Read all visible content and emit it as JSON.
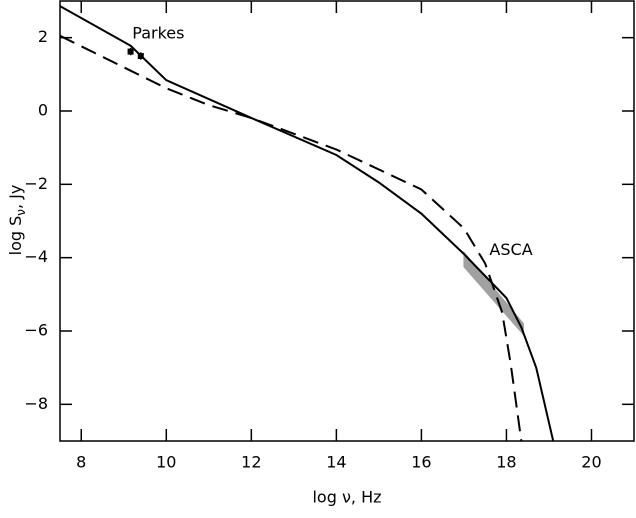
{
  "chart_data": {
    "type": "line",
    "xlabel": "log ν, Hz",
    "ylabel": [
      "log S",
      "ν",
      ", Jy"
    ],
    "xlim": [
      7.5,
      21
    ],
    "ylim": [
      -9,
      3
    ],
    "xticks": [
      8,
      10,
      12,
      14,
      16,
      18,
      20
    ],
    "yticks": [
      {
        "value": -8,
        "label": "−8"
      },
      {
        "value": -6,
        "label": "−6"
      },
      {
        "value": -4,
        "label": "−4"
      },
      {
        "value": -2,
        "label": "−2"
      },
      0,
      2
    ],
    "series": [
      {
        "color": "#000000",
        "dash": false,
        "x": [
          7.5,
          9.16,
          10,
          12,
          14,
          15,
          16,
          17,
          18,
          18.35,
          18.7,
          19.1
        ],
        "values": [
          2.86,
          1.78,
          0.84,
          -0.19,
          -1.2,
          -1.95,
          -2.8,
          -3.9,
          -5.1,
          -5.9,
          -7.0,
          -9
        ]
      },
      {
        "color": "#000000",
        "dash": true,
        "x": [
          7.5,
          9.16,
          10,
          11,
          12,
          14,
          16,
          17,
          17.5,
          17.9,
          18.1,
          18.35
        ],
        "values": [
          2.05,
          1.1,
          0.62,
          0.16,
          -0.19,
          -1.05,
          -2.14,
          -3.2,
          -4.16,
          -5.5,
          -6.9,
          -9
        ]
      }
    ],
    "points": {
      "x": [
        9.16,
        9.4
      ],
      "values": [
        1.62,
        1.5
      ],
      "errors": [
        0.1,
        0.1
      ]
    },
    "band": {
      "color": "#a0a0a0",
      "x": [
        17,
        18.4
      ],
      "upper": [
        -3.85,
        -5.8
      ],
      "lower": [
        -4.25,
        -6.1
      ]
    },
    "annotations": [
      {
        "text": "Parkes",
        "x": 9.2,
        "y": 2.1
      },
      {
        "text": "ASCA",
        "x": 17.6,
        "y": -3.8
      }
    ]
  }
}
